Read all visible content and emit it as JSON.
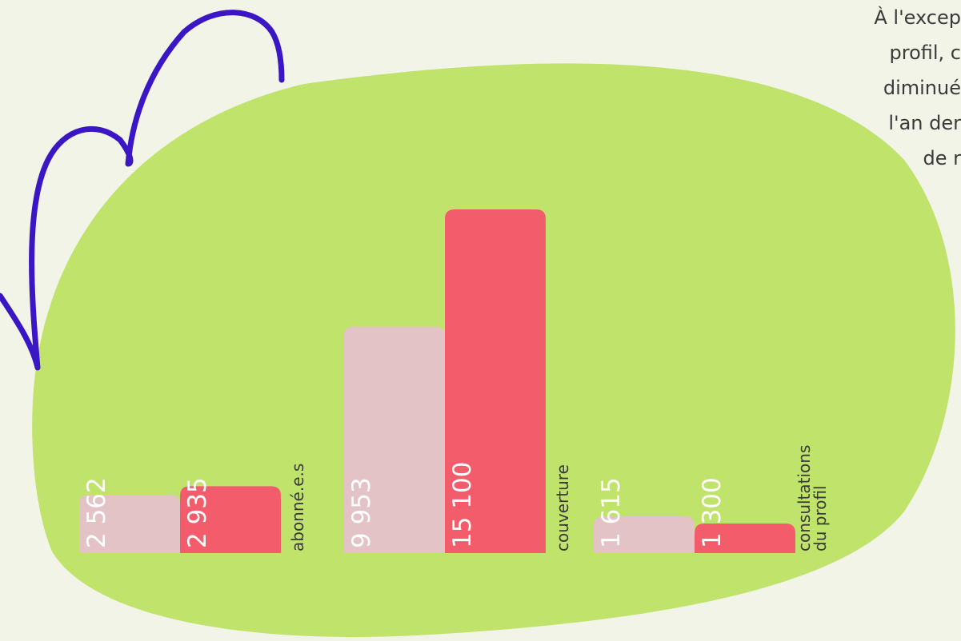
{
  "side_text": {
    "lines": [
      "À l'excep",
      "profil, c",
      "diminué",
      "l'an der",
      "de r"
    ]
  },
  "chart_data": {
    "type": "bar",
    "categories": [
      "abonné.e.s",
      "couverture",
      "consultations du profil"
    ],
    "category_lines": [
      [
        "abonné.e.s"
      ],
      [
        "couverture"
      ],
      [
        "consultations",
        "du profil"
      ]
    ],
    "series": [
      {
        "values": [
          2562,
          9953,
          1615
        ],
        "labels": [
          "2 562",
          "9 953",
          "1 615"
        ],
        "color": "#e4c3c7"
      },
      {
        "values": [
          2935,
          15100,
          1300
        ],
        "labels": [
          "2 935",
          "15 100",
          "1 300"
        ],
        "color": "#f25c6b"
      }
    ],
    "blob_color": "#bfe36b",
    "scribble_color": "#3a16c4",
    "text_color": "#3a3a3a",
    "value_label_color": "#ffffff",
    "title": "",
    "xlabel": "",
    "ylabel": ""
  }
}
